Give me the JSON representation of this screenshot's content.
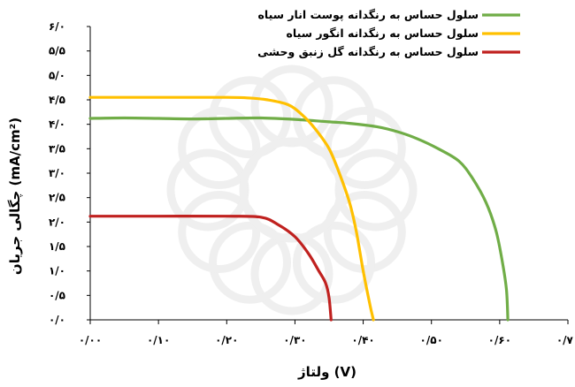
{
  "chart_data": {
    "type": "line",
    "xlabel": "ولتاژ (V)",
    "ylabel": "چگالی جریان (mA/cm²)",
    "xlim": [
      0,
      0.7
    ],
    "ylim": [
      0,
      6
    ],
    "x_ticks": [
      0.0,
      0.1,
      0.2,
      0.3,
      0.4,
      0.5,
      0.6,
      0.7
    ],
    "x_tick_labels": [
      "۰/۰۰",
      "۰/۱۰",
      "۰/۲۰",
      "۰/۳۰",
      "۰/۴۰",
      "۰/۵۰",
      "۰/۶۰",
      "۰/۷۰"
    ],
    "y_ticks": [
      0,
      0.5,
      1,
      1.5,
      2,
      2.5,
      3,
      3.5,
      4,
      4.5,
      5,
      5.5,
      6
    ],
    "y_tick_labels": [
      "۰/۰",
      "۰/۵",
      "۱/۰",
      "۱/۵",
      "۲/۰",
      "۲/۵",
      "۳/۰",
      "۳/۵",
      "۴/۰",
      "۴/۵",
      "۵/۰",
      "۵/۵",
      "۶/۰"
    ],
    "grid": false,
    "legend_position": "top-right",
    "series": [
      {
        "name": "سلول حساس به رنگدانه پوست انار سیاه",
        "color": "#70ad47",
        "points": [
          [
            0.0,
            4.12
          ],
          [
            0.05,
            4.13
          ],
          [
            0.1,
            4.12
          ],
          [
            0.15,
            4.11
          ],
          [
            0.2,
            4.12
          ],
          [
            0.25,
            4.13
          ],
          [
            0.3,
            4.1
          ],
          [
            0.35,
            4.05
          ],
          [
            0.38,
            4.02
          ],
          [
            0.42,
            3.95
          ],
          [
            0.45,
            3.85
          ],
          [
            0.48,
            3.7
          ],
          [
            0.51,
            3.5
          ],
          [
            0.54,
            3.25
          ],
          [
            0.56,
            2.9
          ],
          [
            0.58,
            2.4
          ],
          [
            0.595,
            1.8
          ],
          [
            0.605,
            1.1
          ],
          [
            0.61,
            0.6
          ],
          [
            0.612,
            0.0
          ]
        ]
      },
      {
        "name": "سلول حساس به رنگدانه انگور سیاه",
        "color": "#ffc000",
        "points": [
          [
            0.0,
            4.55
          ],
          [
            0.1,
            4.55
          ],
          [
            0.2,
            4.55
          ],
          [
            0.23,
            4.54
          ],
          [
            0.26,
            4.5
          ],
          [
            0.29,
            4.4
          ],
          [
            0.31,
            4.2
          ],
          [
            0.33,
            3.9
          ],
          [
            0.35,
            3.5
          ],
          [
            0.365,
            3.0
          ],
          [
            0.38,
            2.4
          ],
          [
            0.39,
            1.8
          ],
          [
            0.4,
            1.0
          ],
          [
            0.41,
            0.3
          ],
          [
            0.415,
            0.0
          ]
        ]
      },
      {
        "name": "سلول حساس به رنگدانه گل زنبق وحشی",
        "color": "#c0211f",
        "points": [
          [
            0.0,
            2.12
          ],
          [
            0.1,
            2.12
          ],
          [
            0.2,
            2.12
          ],
          [
            0.25,
            2.1
          ],
          [
            0.275,
            1.95
          ],
          [
            0.3,
            1.7
          ],
          [
            0.32,
            1.35
          ],
          [
            0.335,
            1.0
          ],
          [
            0.345,
            0.75
          ],
          [
            0.35,
            0.45
          ],
          [
            0.353,
            0.0
          ]
        ]
      }
    ]
  }
}
